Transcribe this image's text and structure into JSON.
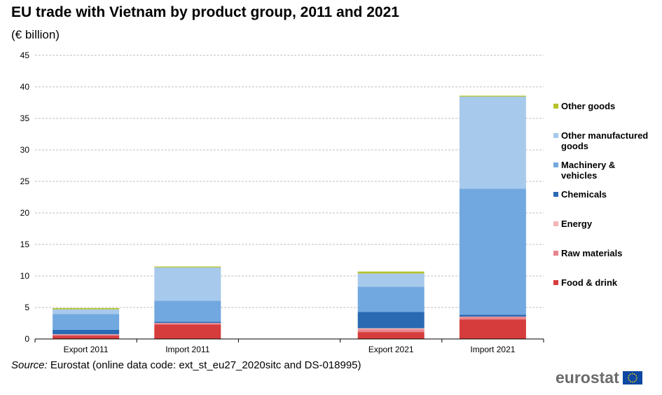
{
  "title": "EU trade with Vietnam by product group, 2011 and 2021",
  "unit": "(€ billion)",
  "source_label": "Source:",
  "source_text": "Eurostat (online data code: ext_st_eu27_2020sitc and DS-018995)",
  "logo_text": "eurostat",
  "colors": {
    "food_drink": "#d73c3c",
    "raw_materials": "#e8848c",
    "energy": "#f5b5b5",
    "chemicals": "#2a6ab2",
    "machinery": "#72a8e0",
    "other_manufactured": "#a7c9ec",
    "other_goods": "#b6c32a",
    "grid": "#bfbfbf",
    "logo_blue": "#0e47a1",
    "logo_star": "#ffdd00"
  },
  "chart_data": {
    "type": "bar",
    "stacked": true,
    "categories": [
      "Export 2011",
      "Import 2011",
      "Export 2021",
      "Import 2021"
    ],
    "ylim": [
      0,
      45
    ],
    "yticks": [
      0,
      5,
      10,
      15,
      20,
      25,
      30,
      35,
      40,
      45
    ],
    "grid": true,
    "legend_position": "right",
    "series": [
      {
        "name": "Food & drink",
        "color_key": "food_drink",
        "values": [
          0.5,
          2.3,
          1.1,
          3.1
        ]
      },
      {
        "name": "Raw materials",
        "color_key": "raw_materials",
        "values": [
          0.2,
          0.2,
          0.4,
          0.4
        ]
      },
      {
        "name": "Energy",
        "color_key": "energy",
        "values": [
          0.05,
          0.05,
          0.2,
          0.05
        ]
      },
      {
        "name": "Chemicals",
        "color_key": "chemicals",
        "values": [
          0.7,
          0.2,
          2.6,
          0.3
        ]
      },
      {
        "name": "Machinery & vehicles",
        "color_key": "machinery",
        "values": [
          2.5,
          3.3,
          4.0,
          20.0
        ]
      },
      {
        "name": "Other manufactured goods",
        "color_key": "other_manufactured",
        "values": [
          0.75,
          5.3,
          2.1,
          14.6
        ]
      },
      {
        "name": "Other goods",
        "color_key": "other_goods",
        "values": [
          0.2,
          0.15,
          0.3,
          0.15
        ]
      }
    ]
  }
}
